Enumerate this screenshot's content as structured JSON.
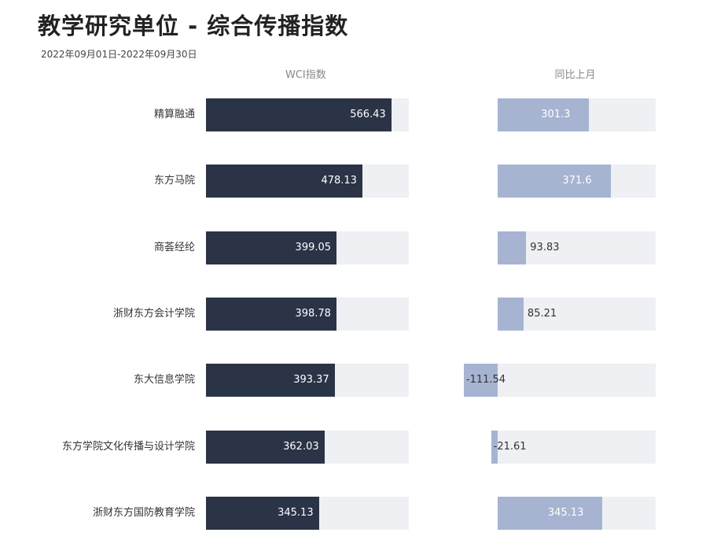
{
  "title": "教学研究单位 - 综合传播指数",
  "subtitle": "2022年09月01日-2022年09月30日",
  "chart_data": {
    "type": "bar",
    "orientation": "horizontal",
    "categories": [
      "精算融通",
      "东方马院",
      "商荟经纶",
      "浙财东方会计学院",
      "东大信息学院",
      "东方学院文化传播与设计学院",
      "浙财东方国防教育学院"
    ],
    "series": [
      {
        "name": "WCI指数",
        "values": [
          566.43,
          478.13,
          399.05,
          398.78,
          393.37,
          362.03,
          345.13
        ],
        "labels": [
          "566.43",
          "478.13",
          "399.05",
          "398.78",
          "393.37",
          "362.03",
          "345.13"
        ],
        "range": [
          0,
          620
        ]
      },
      {
        "name": "同比上月",
        "values": [
          301.3,
          371.6,
          93.83,
          85.21,
          -111.54,
          -21.61,
          345.13
        ],
        "labels": [
          "301.3",
          "371.6",
          "93.83",
          "85.21",
          "-111.54",
          "-21.61",
          "345.13"
        ],
        "range": [
          0,
          520
        ]
      }
    ],
    "colors": {
      "wci": "#2b3347",
      "yoy": "#a6b4d2",
      "track": "#eef0f4"
    },
    "grid": false,
    "legend": "none"
  }
}
